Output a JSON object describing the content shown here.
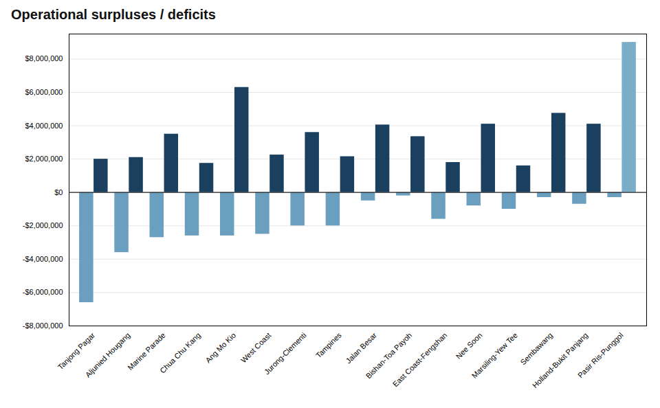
{
  "chart_data": {
    "type": "bar",
    "title": "Operational surpluses / deficits",
    "categories": [
      "Tanjong Pagar",
      "Aljunied Hougang",
      "Marine Parade",
      "Chua Chu Kang",
      "Ang Mo Kio",
      "West Coast",
      "Jurong-Clementi",
      "Tampines",
      "Jalan Besar",
      "Bishan-Toa Payoh",
      "East Coast-Fengshan",
      "Nee Soon",
      "Marsiling-Yew Tee",
      "Sembawang",
      "Holland-Bukit Panjang",
      "Pasir Ris-Punggol"
    ],
    "series": [
      {
        "color": "#6b9fbf",
        "values": [
          -6600000,
          -3600000,
          -2700000,
          -2600000,
          -2600000,
          -2500000,
          -2000000,
          -2000000,
          -500000,
          -200000,
          -1600000,
          -800000,
          -1000000,
          -300000,
          -700000,
          -300000
        ]
      },
      {
        "colors": [
          "#1b3f5e",
          "#1b3f5e",
          "#1b3f5e",
          "#1b3f5e",
          "#1b3f5e",
          "#1b3f5e",
          "#1b3f5e",
          "#1b3f5e",
          "#1b3f5e",
          "#1b3f5e",
          "#1b3f5e",
          "#1b3f5e",
          "#1b3f5e",
          "#1b3f5e",
          "#1b3f5e",
          "#7aaec8"
        ],
        "values": [
          2000000,
          2100000,
          3500000,
          1750000,
          6300000,
          2250000,
          3600000,
          2150000,
          4050000,
          3350000,
          1800000,
          4100000,
          1600000,
          4750000,
          4100000,
          9000000
        ]
      }
    ],
    "ylim": [
      -8000000,
      9500000
    ],
    "yticks": [
      {
        "value": -8000000,
        "label": "-$8,000,000"
      },
      {
        "value": -6000000,
        "label": "-$6,000,000"
      },
      {
        "value": -4000000,
        "label": "-$4,000,000"
      },
      {
        "value": -2000000,
        "label": "-$2,000,000"
      },
      {
        "value": 0,
        "label": "$0"
      },
      {
        "value": 2000000,
        "label": "$2,000,000"
      },
      {
        "value": 4000000,
        "label": "$4,000,000"
      },
      {
        "value": 6000000,
        "label": "$6,000,000"
      },
      {
        "value": 8000000,
        "label": "$8,000,000"
      }
    ],
    "grid": true
  }
}
